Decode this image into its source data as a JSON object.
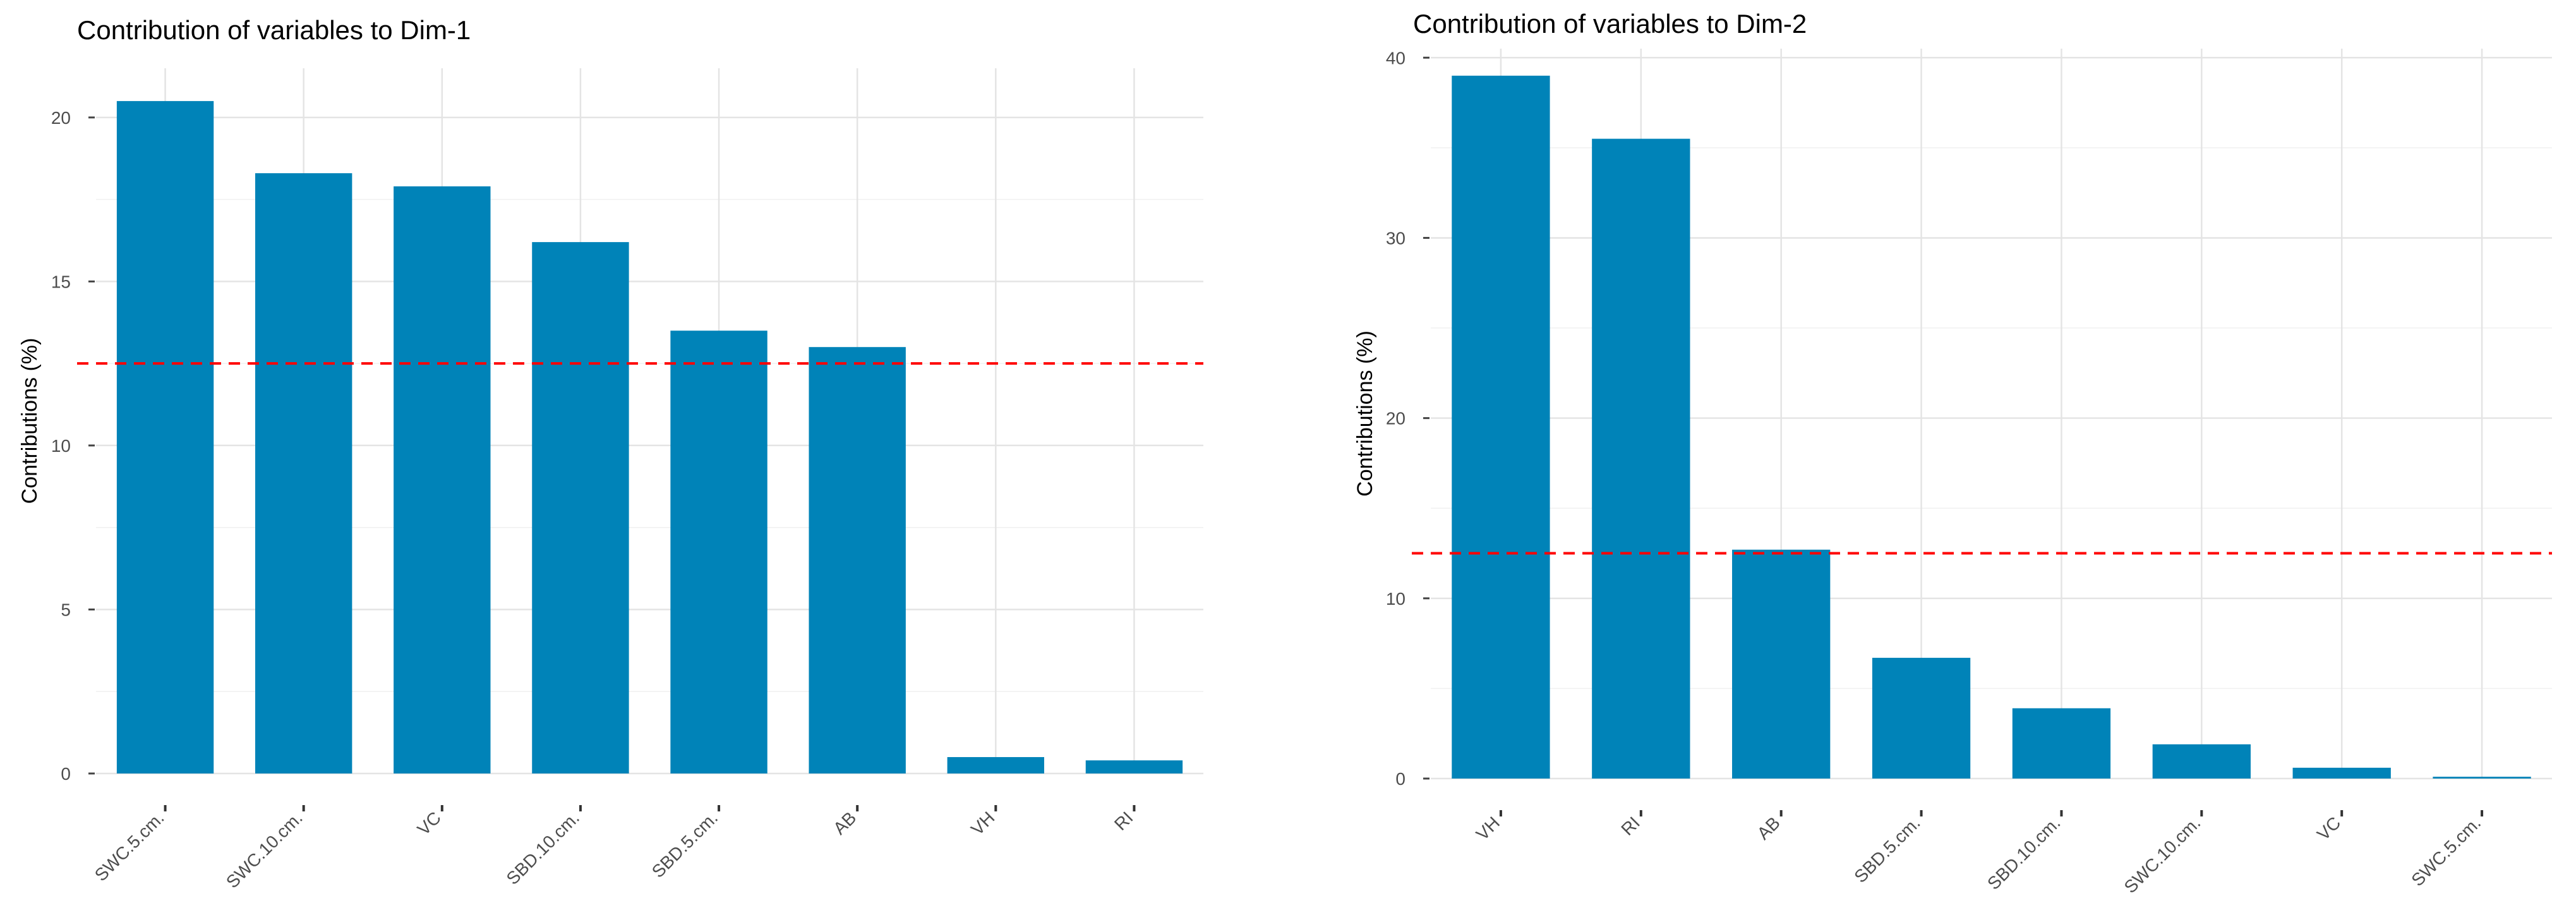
{
  "chart_data": [
    {
      "type": "bar",
      "title": "Contribution of variables to Dim-1",
      "xlabel": "",
      "ylabel": "Contributions (%)",
      "categories": [
        "SWC.5.cm.",
        "SWC.10.cm.",
        "VC",
        "SBD.10.cm.",
        "SBD.5.cm.",
        "AB",
        "VH",
        "RI"
      ],
      "values": [
        20.5,
        18.3,
        17.9,
        16.2,
        13.5,
        13.0,
        0.5,
        0.4
      ],
      "ylim": [
        0,
        21.5
      ],
      "yticks": [
        0,
        5,
        10,
        15,
        20
      ],
      "reference_line": 12.5,
      "bar_color": "#0083b8",
      "reference_color": "#ff0000"
    },
    {
      "type": "bar",
      "title": "Contribution of variables to Dim-2",
      "xlabel": "",
      "ylabel": "Contributions (%)",
      "categories": [
        "VH",
        "RI",
        "AB",
        "SBD.5.cm.",
        "SBD.10.cm.",
        "SWC.10.cm.",
        "VC",
        "SWC.5.cm."
      ],
      "values": [
        39.0,
        35.5,
        12.7,
        6.7,
        3.9,
        1.9,
        0.6,
        0.1
      ],
      "ylim": [
        0,
        40.5
      ],
      "yticks": [
        0,
        10,
        20,
        30,
        40
      ],
      "reference_line": 12.5,
      "bar_color": "#0083b8",
      "reference_color": "#ff0000"
    }
  ]
}
